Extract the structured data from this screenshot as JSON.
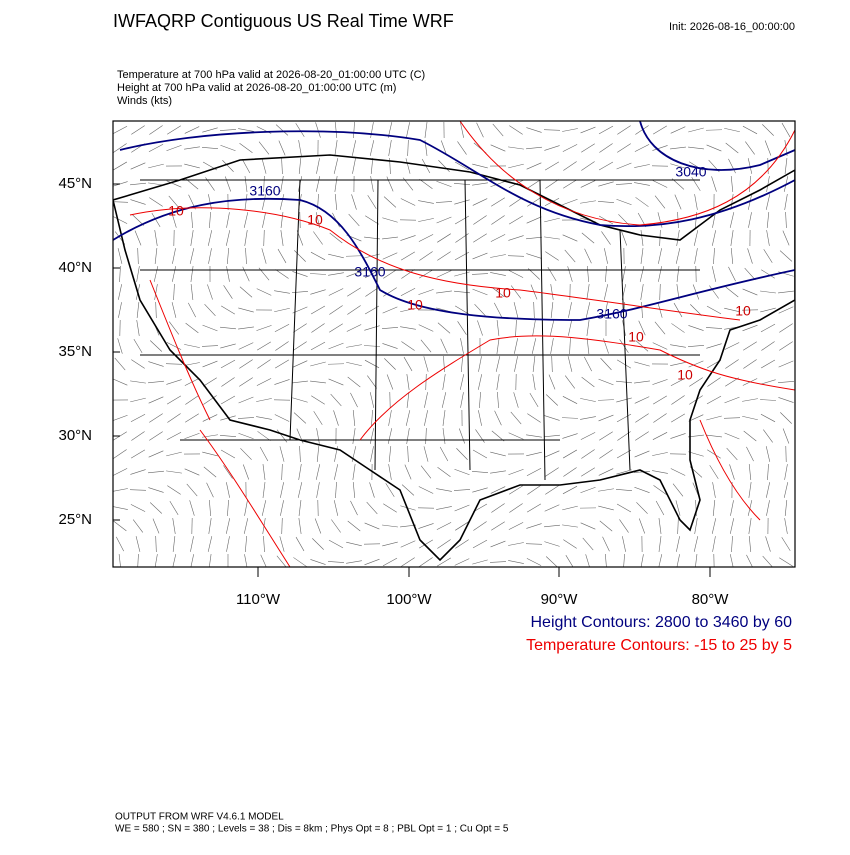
{
  "header": {
    "title": "IWFAQRP Contiguous US Real Time WRF",
    "init": "Init: 2026-08-16_00:00:00",
    "subtitles": [
      "Temperature at 700 hPa valid at 2026-08-20_01:00:00 UTC   (C)",
      "Height at 700 hPa valid at 2026-08-20_01:00:00 UTC   (m)",
      "Winds   (kts)"
    ]
  },
  "map": {
    "lat_labels": [
      "45°N",
      "40°N",
      "35°N",
      "30°N",
      "25°N"
    ],
    "lon_labels": [
      "110°W",
      "100°W",
      "90°W",
      "80°W"
    ],
    "height_contour_labels": [
      "3160",
      "3160",
      "3160",
      "3040"
    ],
    "temperature_contour_labels": [
      "10",
      "10",
      "10",
      "10",
      "10",
      "10",
      "10"
    ]
  },
  "legend": {
    "height": "Height Contours: 2800 to 3460 by 60",
    "temperature": "Temperature Contours: -15 to 25 by 5"
  },
  "footer": [
    "OUTPUT FROM WRF V4.6.1 MODEL",
    "WE = 580 ; SN = 380 ; Levels = 38 ; Dis = 8km ; Phys Opt = 8 ; PBL Opt = 1 ; Cu Opt = 5"
  ]
}
